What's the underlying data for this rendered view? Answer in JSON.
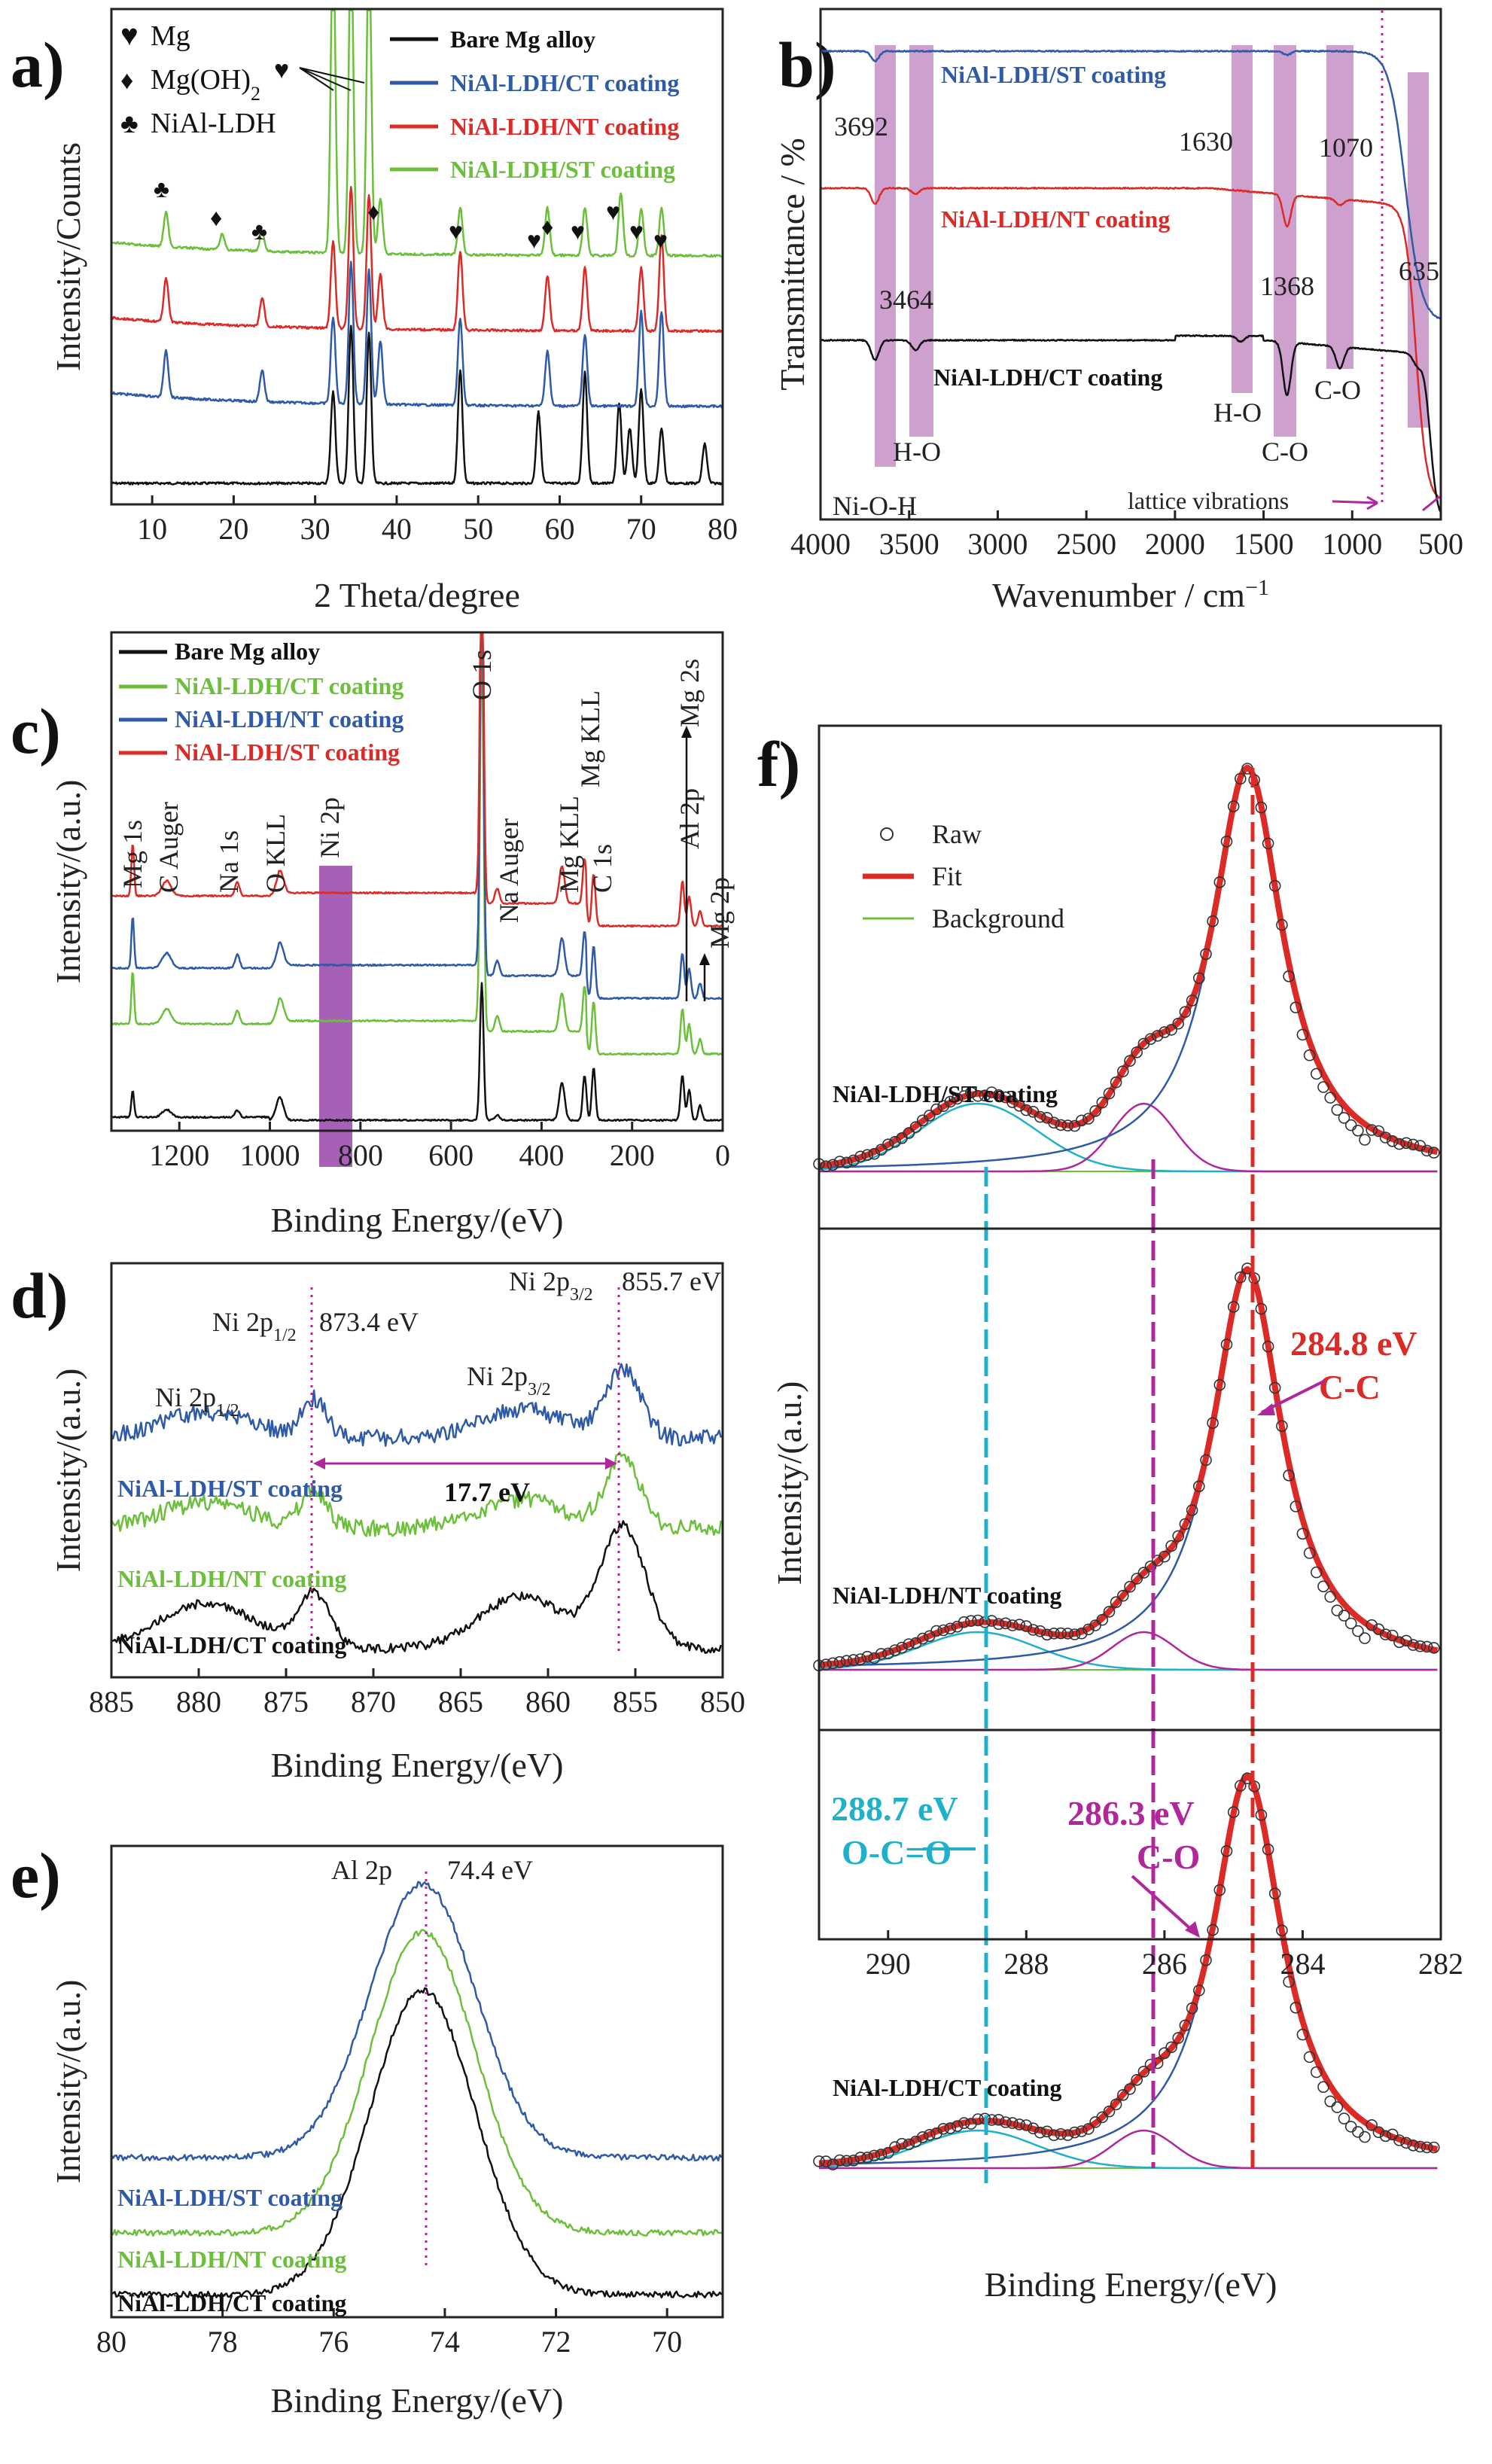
{
  "colors": {
    "black": "#111111",
    "blue": "#2e5aa8",
    "red": "#dc2a26",
    "green": "#6bbf3a",
    "magenta": "#b0279c",
    "cyan": "#1fb1c9",
    "lilac": "#c68fc4",
    "purple": "#9c4fae"
  },
  "chart_data": [
    {
      "id": "a",
      "panel": "a)",
      "type": "line",
      "title": "",
      "xlabel": "2 Theta/degree",
      "ylabel": "Intensity/Counts",
      "xlim": [
        5,
        80
      ],
      "xticks": [
        "10",
        "20",
        "30",
        "40",
        "50",
        "60",
        "70",
        "80"
      ],
      "legend": [
        "Bare Mg alloy",
        "NiAl-LDH/CT coating",
        "NiAl-LDH/NT coating",
        "NiAl-LDH/ST coating"
      ],
      "markers": {
        "mg": "Mg",
        "mgoh2": "Mg(OH)",
        "mgoh2_sub": "2",
        "ldh": "NiAl-LDH"
      },
      "series": [
        {
          "name": "Bare Mg alloy",
          "offset": 0,
          "peaks": [
            [
              32.2,
              0.58
            ],
            [
              34.4,
              1.0
            ],
            [
              36.6,
              0.95
            ],
            [
              47.8,
              0.72
            ],
            [
              57.4,
              0.45
            ],
            [
              63.1,
              0.7
            ],
            [
              67.3,
              0.5
            ],
            [
              68.6,
              0.35
            ],
            [
              70.0,
              0.6
            ],
            [
              72.5,
              0.35
            ],
            [
              77.8,
              0.25
            ]
          ]
        },
        {
          "name": "NiAl-LDH/CT coating",
          "offset": 1,
          "peaks": [
            [
              11.7,
              0.3
            ],
            [
              23.5,
              0.2
            ],
            [
              32.2,
              0.55
            ],
            [
              34.4,
              0.9
            ],
            [
              36.6,
              0.85
            ],
            [
              38.0,
              0.4
            ],
            [
              47.8,
              0.55
            ],
            [
              58.5,
              0.35
            ],
            [
              63.1,
              0.45
            ],
            [
              70.0,
              0.6
            ],
            [
              72.5,
              0.6
            ]
          ]
        },
        {
          "name": "NiAl-LDH/NT coating",
          "offset": 2,
          "peaks": [
            [
              11.7,
              0.28
            ],
            [
              23.5,
              0.18
            ],
            [
              32.2,
              0.55
            ],
            [
              34.4,
              0.9
            ],
            [
              36.6,
              0.85
            ],
            [
              38.0,
              0.35
            ],
            [
              47.8,
              0.5
            ],
            [
              58.5,
              0.35
            ],
            [
              63.1,
              0.4
            ],
            [
              70.0,
              0.4
            ],
            [
              72.5,
              0.6
            ]
          ]
        },
        {
          "name": "NiAl-LDH/ST coating",
          "offset": 3,
          "peaks": [
            [
              11.7,
              0.22
            ],
            [
              18.6,
              0.1
            ],
            [
              23.5,
              0.12
            ],
            [
              32.2,
              2.0
            ],
            [
              34.4,
              2.0
            ],
            [
              36.6,
              2.0
            ],
            [
              38.0,
              0.35
            ],
            [
              47.8,
              0.3
            ],
            [
              58.5,
              0.3
            ],
            [
              63.1,
              0.3
            ],
            [
              67.5,
              0.4
            ],
            [
              70.0,
              0.3
            ],
            [
              72.5,
              0.3
            ]
          ]
        }
      ]
    },
    {
      "id": "b",
      "panel": "b)",
      "type": "line",
      "title": "",
      "xlabel": "Wavenumber / cm",
      "xlabel_sup": "−1",
      "ylabel": "Transmittance / %",
      "xlim": [
        4000,
        500
      ],
      "xticks": [
        "4000",
        "3500",
        "3000",
        "2500",
        "2000",
        "1500",
        "1000",
        "500"
      ],
      "series_labels": [
        "NiAl-LDH/ST coating",
        "NiAl-LDH/NT coating",
        "NiAl-LDH/CT coating"
      ],
      "bands": [
        "3692",
        "3464",
        "1630",
        "1368",
        "1070",
        "635"
      ],
      "band_labels": [
        "Ni-O-H",
        "H-O",
        "H-O",
        "C-O",
        "C-O",
        "lattice vibrations"
      ],
      "series": [
        {
          "name": "NiAl-LDH/ST coating",
          "dips": [
            [
              3692,
              0.5
            ],
            [
              1368,
              0.2
            ]
          ]
        },
        {
          "name": "NiAl-LDH/NT coating",
          "dips": [
            [
              3692,
              0.8
            ],
            [
              3464,
              0.3
            ],
            [
              1368,
              1.6
            ],
            [
              1070,
              0.3
            ]
          ]
        },
        {
          "name": "NiAl-LDH/CT coating",
          "dips": [
            [
              3692,
              1.0
            ],
            [
              3464,
              0.5
            ],
            [
              1630,
              0.3
            ],
            [
              1368,
              2.7
            ],
            [
              1070,
              1.1
            ],
            [
              635,
              0.5
            ]
          ]
        }
      ]
    },
    {
      "id": "c",
      "panel": "c)",
      "type": "line",
      "title": "",
      "xlabel": "Binding Energy/(eV)",
      "ylabel": "Intensity/(a.u.)",
      "xlim": [
        1350,
        0
      ],
      "xticks": [
        "1200",
        "1000",
        "800",
        "600",
        "400",
        "200",
        "0"
      ],
      "legend": [
        "Bare Mg alloy",
        "NiAl-LDH/CT coating",
        "NiAl-LDH/NT coating",
        "NiAl-LDH/ST coating"
      ],
      "peak_labels": [
        "Mg 1s",
        "C Auger",
        "Na 1s",
        "O KLL",
        "Ni 2p",
        "O 1s",
        "Na Auger",
        "Mg KLL",
        "Mg KLL",
        "C 1s",
        "Mg 2s",
        "Al 2p",
        "Mg 2p"
      ]
    },
    {
      "id": "d",
      "panel": "d)",
      "type": "line",
      "title": "",
      "xlabel": "Binding Energy/(eV)",
      "ylabel": "Intensity/(a.u.)",
      "xlim": [
        885,
        850
      ],
      "xticks": [
        "885",
        "880",
        "875",
        "870",
        "865",
        "860",
        "855",
        "850"
      ],
      "series_labels": [
        "NiAl-LDH/ST coating",
        "NiAl-LDH/NT coating",
        "NiAl-LDH/CT coating"
      ],
      "peaks": [
        "873.4 eV",
        "855.7 eV"
      ],
      "annotations": {
        "ni_p12": "Ni 2p",
        "ni_p12_sub": "1/2",
        "ni_p32": "Ni 2p",
        "ni_p32_sub": "3/2",
        "split": "17.7 eV"
      }
    },
    {
      "id": "e",
      "panel": "e)",
      "type": "line",
      "title": "",
      "xlabel": "Binding Energy/(eV)",
      "ylabel": "Intensity/(a.u.)",
      "xlim": [
        80,
        69
      ],
      "xticks": [
        "80",
        "78",
        "76",
        "74",
        "72",
        "70"
      ],
      "series_labels": [
        "NiAl-LDH/ST coating",
        "NiAl-LDH/NT coating",
        "NiAl-LDH/CT coating"
      ],
      "peak_label": "Al 2p",
      "peak_value": "74.4 eV"
    },
    {
      "id": "f",
      "panel": "f)",
      "type": "line",
      "title": "",
      "xlabel": "Binding Energy/(eV)",
      "ylabel": "Intensity/(a.u.)",
      "xlim": [
        291,
        282
      ],
      "xticks": [
        "290",
        "288",
        "286",
        "284",
        "282"
      ],
      "legend": [
        "Raw",
        "Fit",
        "Background"
      ],
      "subpanels": [
        "NiAl-LDH/ST coating",
        "NiAl-LDH/NT coating",
        "NiAl-LDH/CT coating"
      ],
      "components": [
        {
          "label": "C-C",
          "value": "284.8 eV"
        },
        {
          "label": "C-O",
          "value": "286.3 eV"
        },
        {
          "label": "O-C=O",
          "value": "288.7 eV"
        }
      ]
    }
  ]
}
